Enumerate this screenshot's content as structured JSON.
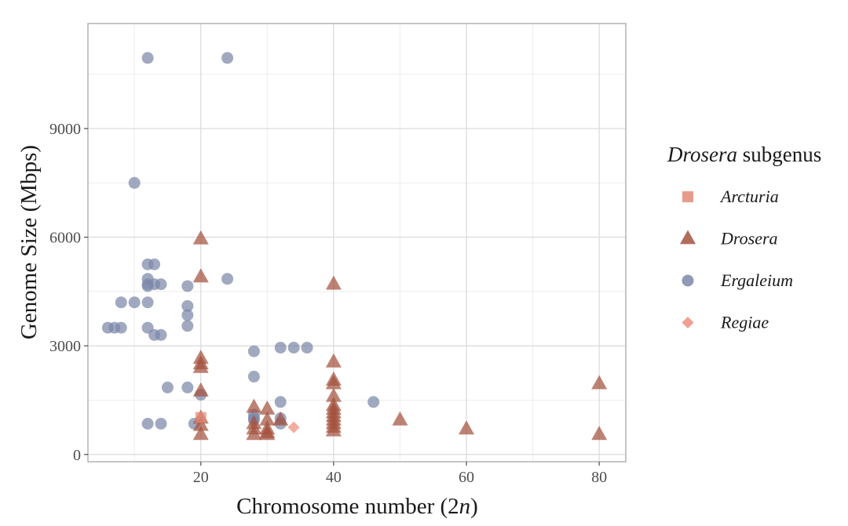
{
  "chart_data": {
    "type": "scatter",
    "title": "",
    "xlabel": "Chromosome number (2n)",
    "xlabel_parts": [
      "Chromosome number (2",
      "n",
      ")"
    ],
    "ylabel": "Genome Size (Mbps)",
    "xlim": [
      3,
      84
    ],
    "ylim": [
      -200,
      11900
    ],
    "x_ticks": [
      20,
      40,
      60,
      80
    ],
    "y_ticks": [
      0,
      3000,
      6000,
      9000
    ],
    "grid": true,
    "legend": {
      "title": "Drosera subgenus",
      "title_italic": "Drosera",
      "title_rest": " subgenus",
      "placement": "right"
    },
    "series": [
      {
        "name": "Arcturia",
        "marker": "square",
        "color": "#e38a77",
        "points": [
          [
            20,
            1020
          ]
        ]
      },
      {
        "name": "Drosera",
        "marker": "triangle",
        "color": "#a3523f",
        "points": [
          [
            20,
            5950
          ],
          [
            20,
            4900
          ],
          [
            20,
            2650
          ],
          [
            20,
            2500
          ],
          [
            20,
            2400
          ],
          [
            20,
            1750
          ],
          [
            20,
            1000
          ],
          [
            20,
            800
          ],
          [
            20,
            550
          ],
          [
            28,
            1300
          ],
          [
            28,
            850
          ],
          [
            28,
            700
          ],
          [
            28,
            550
          ],
          [
            30,
            1250
          ],
          [
            30,
            950
          ],
          [
            30,
            700
          ],
          [
            30,
            600
          ],
          [
            30,
            550
          ],
          [
            32,
            950
          ],
          [
            40,
            4700
          ],
          [
            40,
            2550
          ],
          [
            40,
            2050
          ],
          [
            40,
            1950
          ],
          [
            40,
            1600
          ],
          [
            40,
            1350
          ],
          [
            40,
            1250
          ],
          [
            40,
            1150
          ],
          [
            40,
            1050
          ],
          [
            40,
            950
          ],
          [
            40,
            850
          ],
          [
            40,
            750
          ],
          [
            40,
            650
          ],
          [
            50,
            950
          ],
          [
            60,
            700
          ],
          [
            80,
            1950
          ],
          [
            80,
            550
          ]
        ]
      },
      {
        "name": "Ergaleium",
        "marker": "circle",
        "color": "#7b88a8",
        "points": [
          [
            12,
            10950
          ],
          [
            24,
            10950
          ],
          [
            10,
            7500
          ],
          [
            12,
            5250
          ],
          [
            13,
            5250
          ],
          [
            12,
            4850
          ],
          [
            12,
            4700
          ],
          [
            12,
            4650
          ],
          [
            13,
            4700
          ],
          [
            14,
            4700
          ],
          [
            18,
            4650
          ],
          [
            24,
            4850
          ],
          [
            8,
            4200
          ],
          [
            10,
            4200
          ],
          [
            12,
            4200
          ],
          [
            18,
            4100
          ],
          [
            18,
            3850
          ],
          [
            18,
            3550
          ],
          [
            6,
            3500
          ],
          [
            7,
            3500
          ],
          [
            8,
            3500
          ],
          [
            12,
            3500
          ],
          [
            13,
            3300
          ],
          [
            14,
            3300
          ],
          [
            28,
            2850
          ],
          [
            32,
            2950
          ],
          [
            34,
            2950
          ],
          [
            36,
            2950
          ],
          [
            28,
            2150
          ],
          [
            15,
            1850
          ],
          [
            18,
            1850
          ],
          [
            20,
            1650
          ],
          [
            32,
            1450
          ],
          [
            46,
            1450
          ],
          [
            28,
            1100
          ],
          [
            28,
            1000
          ],
          [
            28,
            950
          ],
          [
            32,
            1000
          ],
          [
            32,
            850
          ],
          [
            12,
            850
          ],
          [
            14,
            850
          ],
          [
            19,
            850
          ]
        ]
      },
      {
        "name": "Regiae",
        "marker": "diamond",
        "color": "#ef8e7d",
        "points": [
          [
            34,
            750
          ]
        ]
      }
    ]
  }
}
